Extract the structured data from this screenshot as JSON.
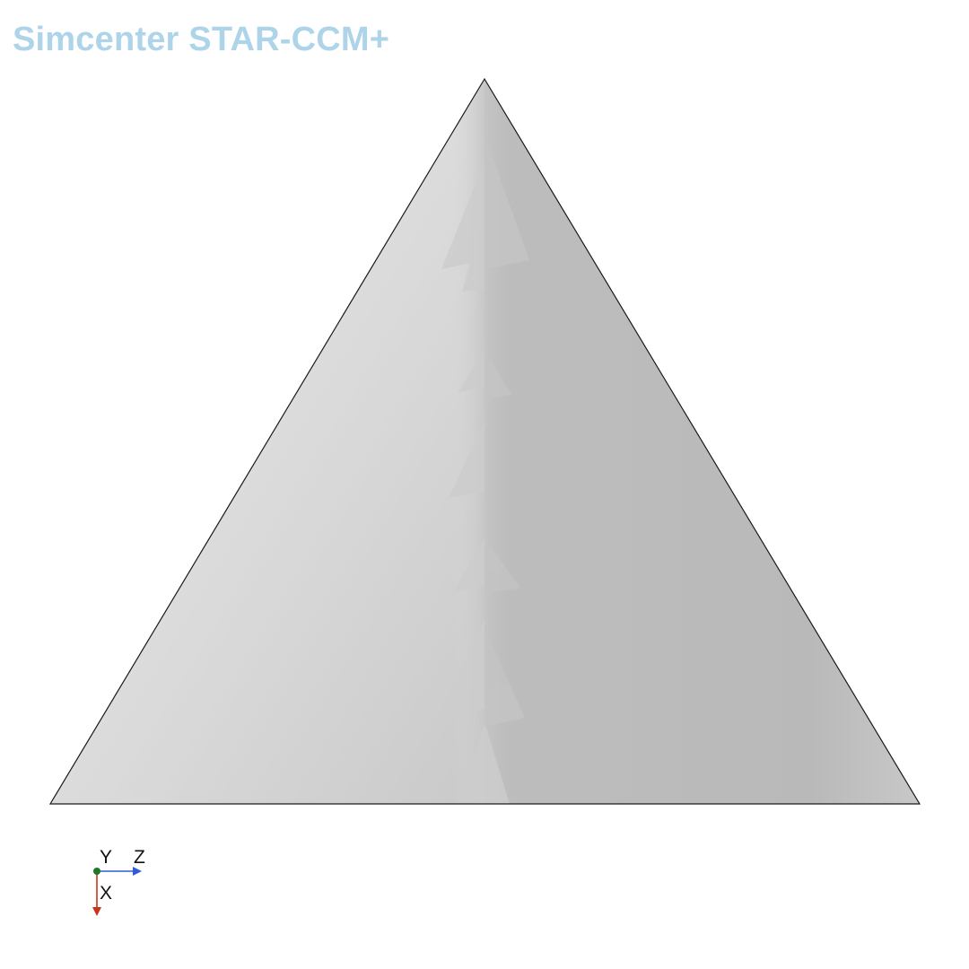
{
  "app": {
    "title": "Simcenter STAR-CCM+"
  },
  "colors": {
    "title": "#aed4ea",
    "surface_light": "#e6e6e6",
    "surface_mid": "#d2d2d2",
    "surface_dark": "#bababa",
    "surface_edge": "#c8c8c8",
    "outline": "#1a1a1a",
    "axis_x": "#c9341c",
    "axis_y": "#1e7a2a",
    "axis_z": "#2f5bd6"
  },
  "axis_triad": {
    "x_label": "X",
    "y_label": "Y",
    "z_label": "Z"
  }
}
